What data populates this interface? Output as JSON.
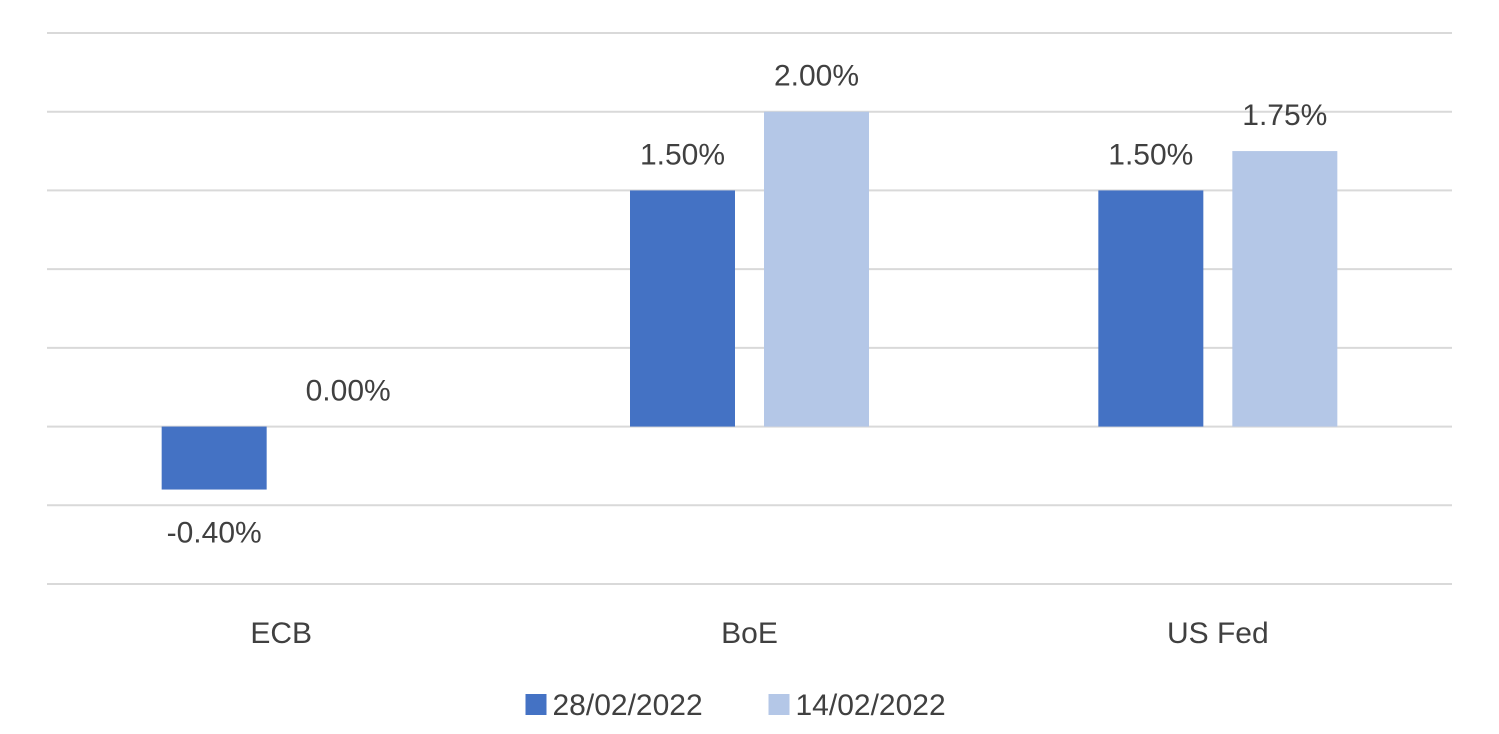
{
  "chart_data": {
    "type": "bar",
    "categories": [
      "ECB",
      "BoE",
      "US Fed"
    ],
    "series": [
      {
        "name": "28/02/2022",
        "color": "#4472c4",
        "values": [
          -0.4,
          1.5,
          1.5
        ],
        "labels": [
          "-0.40%",
          "1.50%",
          "1.50%"
        ]
      },
      {
        "name": "14/02/2022",
        "color": "#b4c7e7",
        "values": [
          0.0,
          2.0,
          1.75
        ],
        "labels": [
          "0.00%",
          "2.00%",
          "1.75%"
        ]
      }
    ],
    "ylim": [
      -1.0,
      2.5
    ],
    "grid": true,
    "legend": "bottom"
  }
}
